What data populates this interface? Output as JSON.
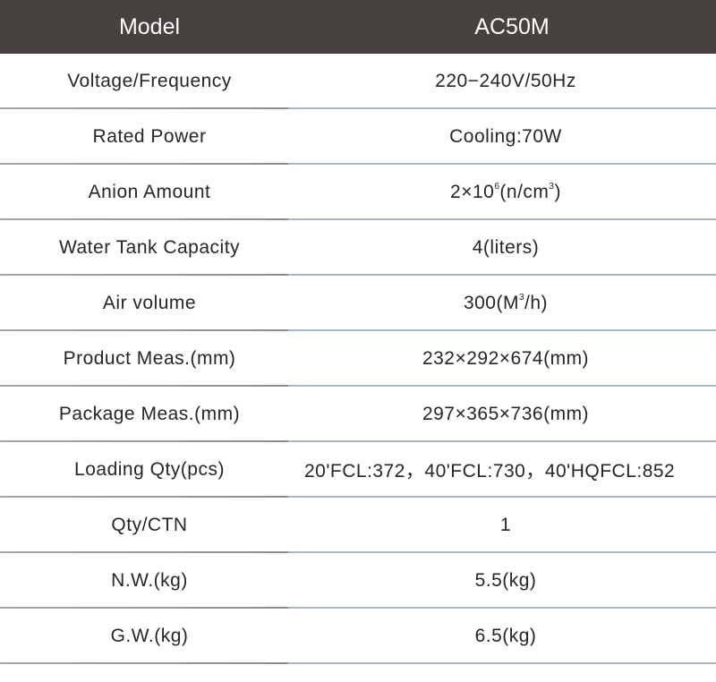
{
  "header": {
    "label": "Model",
    "value": "AC50M"
  },
  "rows": [
    {
      "label": "Voltage/Frequency",
      "value": "220−240V/50Hz"
    },
    {
      "label": "Rated Power",
      "value": "Cooling:70W"
    },
    {
      "label": "Anion Amount",
      "value_parts": {
        "pre": "2×10",
        "sup1": "6",
        "mid": "(n/cm",
        "sup2": "3",
        "post": ")"
      }
    },
    {
      "label": "Water Tank Capacity",
      "value": "4(liters)"
    },
    {
      "label": "Air volume",
      "value_parts": {
        "pre": "300(M",
        "sup1": "3",
        "post": "/h)"
      }
    },
    {
      "label": "Product Meas.(mm)",
      "value": "232×292×674(mm)"
    },
    {
      "label": "Package Meas.(mm)",
      "value": "297×365×736(mm)"
    },
    {
      "label": "Loading Qty(pcs)",
      "value": "20'FCL:372，40'FCL:730，40'HQFCL:852"
    },
    {
      "label": "Qty/CTN",
      "value": "1"
    },
    {
      "label": "N.W.(kg)",
      "value": "5.5(kg)"
    },
    {
      "label": "G.W.(kg)",
      "value": "6.5(kg)"
    }
  ]
}
